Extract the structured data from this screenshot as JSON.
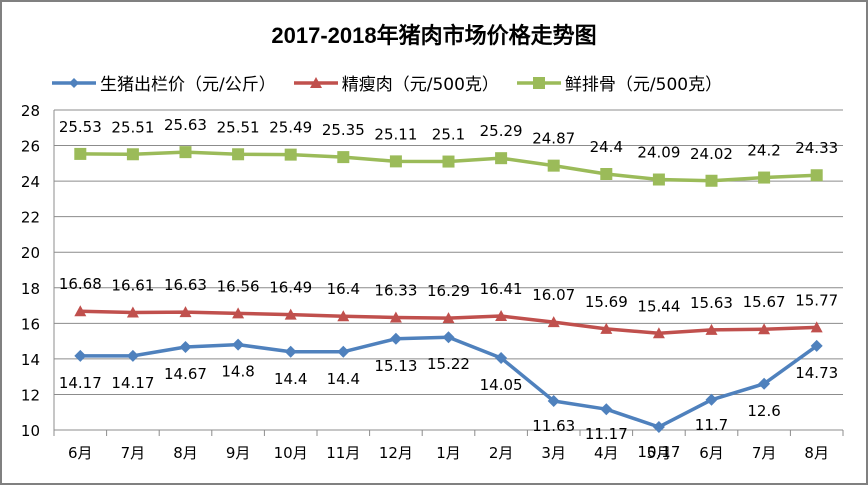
{
  "chart_data": {
    "type": "line",
    "title": "2017-2018年猪肉市场价格走势图",
    "xlabel": "",
    "ylabel": "",
    "categories": [
      "6月",
      "7月",
      "8月",
      "9月",
      "10月",
      "11月",
      "12月",
      "1月",
      "2月",
      "3月",
      "4月",
      "5月",
      "6月",
      "7月",
      "8月"
    ],
    "ylim": [
      10,
      28
    ],
    "yticks": [
      10,
      12,
      14,
      16,
      18,
      20,
      22,
      24,
      26,
      28
    ],
    "grid": true,
    "legend_position": "top",
    "series": [
      {
        "name": "生猪出栏价（元/公斤）",
        "color": "#4F81BD",
        "marker": "diamond",
        "values": [
          14.17,
          14.17,
          14.67,
          14.8,
          14.4,
          14.4,
          15.13,
          15.22,
          14.05,
          11.63,
          11.17,
          10.17,
          11.7,
          12.6,
          14.73
        ]
      },
      {
        "name": "精瘦肉（元/500克）",
        "color": "#C0504D",
        "marker": "triangle",
        "values": [
          16.68,
          16.61,
          16.63,
          16.56,
          16.49,
          16.4,
          16.33,
          16.29,
          16.41,
          16.07,
          15.69,
          15.44,
          15.63,
          15.67,
          15.77
        ]
      },
      {
        "name": "鲜排骨（元/500克）",
        "color": "#9BBB59",
        "marker": "square",
        "values": [
          25.53,
          25.51,
          25.63,
          25.51,
          25.49,
          25.35,
          25.11,
          25.1,
          25.29,
          24.87,
          24.4,
          24.09,
          24.02,
          24.2,
          24.33
        ]
      }
    ]
  },
  "labels": {
    "title": "2017-2018年猪肉市场价格走势图",
    "legend": [
      "生猪出栏价（元/公斤）",
      "精瘦肉（元/500克）",
      "鲜排骨（元/500克）"
    ]
  }
}
